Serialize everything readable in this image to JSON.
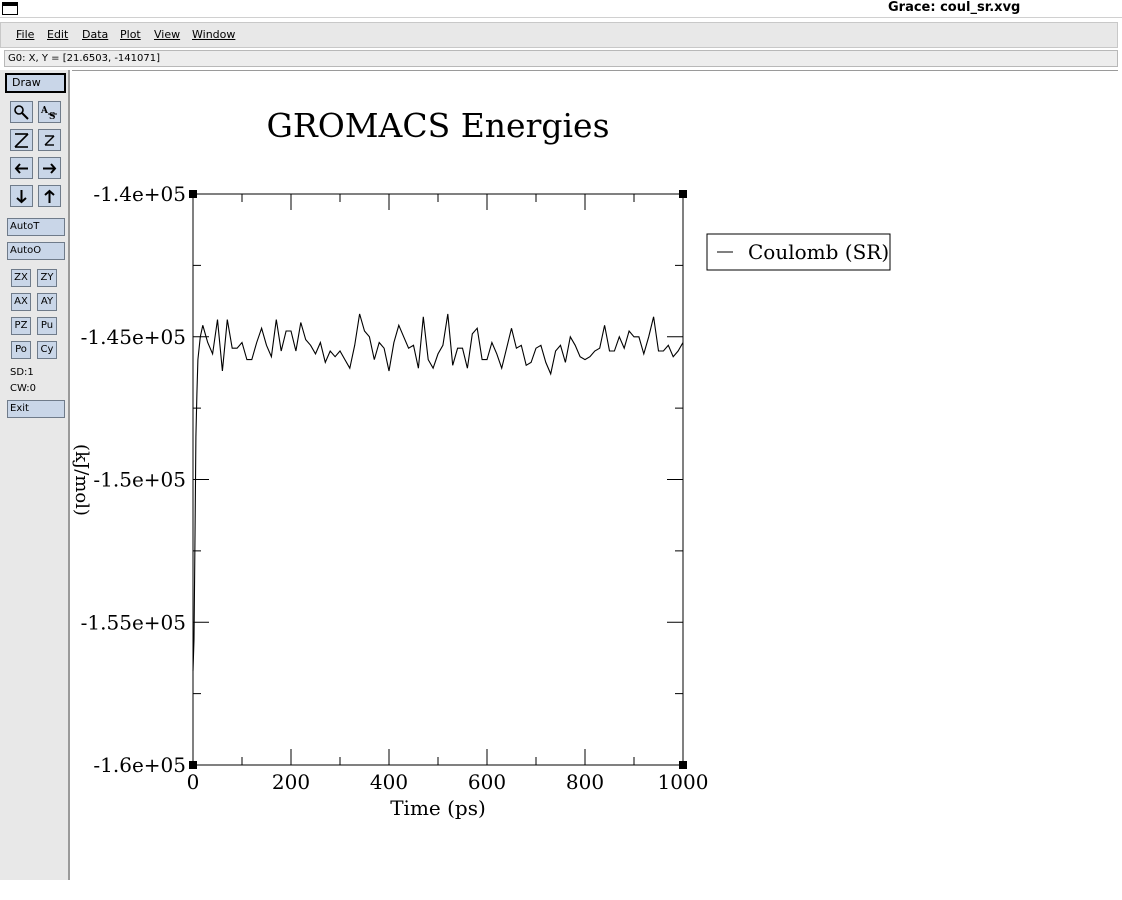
{
  "window": {
    "title": "Grace: coul_sr.xvg"
  },
  "menubar": {
    "items": [
      {
        "label": "File"
      },
      {
        "label": "Edit"
      },
      {
        "label": "Data"
      },
      {
        "label": "Plot"
      },
      {
        "label": "View"
      },
      {
        "label": "Window"
      }
    ]
  },
  "locator": {
    "text": "G0: X, Y = [21.6503, -141071]"
  },
  "toolbar": {
    "draw_label": "Draw",
    "autot_label": "AutoT",
    "autoo_label": "AutoO",
    "zx_label": "ZX",
    "zy_label": "ZY",
    "ax_label": "AX",
    "ay_label": "AY",
    "pz_label": "PZ",
    "pu_label": "Pu",
    "po_label": "Po",
    "cy_label": "Cy",
    "sd_text": "SD:1",
    "cw_text": "CW:0",
    "exit_label": "Exit",
    "icons": [
      "zoom-icon",
      "autoscale-text-icon",
      "zoom-x-icon",
      "zoom-y-icon",
      "scroll-left-icon",
      "scroll-right-icon",
      "scroll-down-icon",
      "scroll-up-icon"
    ]
  },
  "chart_data": {
    "type": "line",
    "title": "GROMACS Energies",
    "xlabel": "Time (ps)",
    "ylabel": "(kJ/mol)",
    "xlim": [
      0,
      1000
    ],
    "ylim": [
      -160000,
      -140000
    ],
    "xticks": [
      0,
      200,
      400,
      600,
      800,
      1000
    ],
    "xtick_labels": [
      "0",
      "200",
      "400",
      "600",
      "800",
      "1000"
    ],
    "yticks": [
      -140000,
      -145000,
      -150000,
      -155000,
      -160000
    ],
    "ytick_labels": [
      "-1.4e+05",
      "-1.45e+05",
      "-1.5e+05",
      "-1.55e+05",
      "-1.6e+05"
    ],
    "legend": {
      "position": "top-right-outside",
      "entries": [
        "Coulomb (SR)"
      ]
    },
    "line_color": "#000000",
    "series": [
      {
        "name": "Coulomb (SR)",
        "x": [
          0,
          2,
          4,
          6,
          8,
          10,
          15,
          20,
          30,
          40,
          50,
          60,
          70,
          80,
          90,
          100,
          110,
          120,
          130,
          140,
          150,
          160,
          170,
          180,
          190,
          200,
          210,
          220,
          230,
          240,
          250,
          260,
          270,
          280,
          290,
          300,
          310,
          320,
          330,
          340,
          350,
          360,
          370,
          380,
          390,
          400,
          410,
          420,
          430,
          440,
          450,
          460,
          470,
          480,
          490,
          500,
          510,
          520,
          530,
          540,
          550,
          560,
          570,
          580,
          590,
          600,
          610,
          620,
          630,
          640,
          650,
          660,
          670,
          680,
          690,
          700,
          710,
          720,
          730,
          740,
          750,
          760,
          770,
          780,
          790,
          800,
          810,
          820,
          830,
          840,
          850,
          860,
          870,
          880,
          890,
          900,
          910,
          920,
          930,
          940,
          950,
          960,
          970,
          980,
          990,
          1000
        ],
        "y": [
          -156700,
          -155600,
          -152000,
          -148500,
          -147000,
          -145800,
          -145000,
          -144600,
          -145200,
          -145600,
          -144400,
          -146200,
          -144400,
          -145400,
          -145400,
          -145200,
          -145800,
          -145800,
          -145200,
          -144700,
          -145300,
          -145700,
          -144400,
          -145500,
          -144800,
          -144800,
          -145500,
          -144500,
          -145100,
          -145300,
          -145600,
          -145200,
          -145900,
          -145500,
          -145700,
          -145500,
          -145800,
          -146100,
          -145300,
          -144200,
          -144800,
          -145000,
          -145800,
          -145200,
          -145400,
          -146200,
          -145200,
          -144600,
          -145000,
          -145400,
          -145300,
          -146100,
          -144300,
          -145800,
          -146100,
          -145600,
          -145300,
          -144200,
          -146000,
          -145400,
          -145400,
          -146100,
          -144900,
          -144700,
          -145800,
          -145800,
          -145200,
          -145600,
          -146100,
          -145400,
          -144700,
          -145400,
          -145300,
          -146000,
          -145900,
          -145400,
          -145300,
          -145900,
          -146300,
          -145500,
          -145300,
          -145900,
          -145000,
          -145300,
          -145700,
          -145800,
          -145700,
          -145500,
          -145400,
          -144600,
          -145500,
          -145500,
          -145000,
          -145400,
          -144800,
          -145000,
          -145000,
          -145600,
          -145000,
          -144300,
          -145500,
          -145500,
          -145300,
          -145700,
          -145500,
          -145200
        ]
      }
    ]
  }
}
